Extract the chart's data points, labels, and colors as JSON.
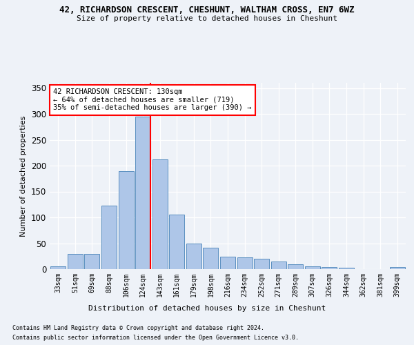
{
  "title_line1": "42, RICHARDSON CRESCENT, CHESHUNT, WALTHAM CROSS, EN7 6WZ",
  "title_line2": "Size of property relative to detached houses in Cheshunt",
  "xlabel": "Distribution of detached houses by size in Cheshunt",
  "ylabel": "Number of detached properties",
  "categories": [
    "33sqm",
    "51sqm",
    "69sqm",
    "88sqm",
    "106sqm",
    "124sqm",
    "143sqm",
    "161sqm",
    "179sqm",
    "198sqm",
    "216sqm",
    "234sqm",
    "252sqm",
    "271sqm",
    "289sqm",
    "307sqm",
    "326sqm",
    "344sqm",
    "362sqm",
    "381sqm",
    "399sqm"
  ],
  "values": [
    5,
    29,
    29,
    123,
    190,
    295,
    212,
    106,
    50,
    41,
    24,
    23,
    20,
    15,
    10,
    5,
    4,
    3,
    0,
    0,
    4
  ],
  "bar_color": "#aec6e8",
  "bar_edge_color": "#5a8fc0",
  "ylim": [
    0,
    360
  ],
  "yticks": [
    0,
    50,
    100,
    150,
    200,
    250,
    300,
    350
  ],
  "red_line_x": 5.0,
  "annotation_text": "42 RICHARDSON CRESCENT: 130sqm\n← 64% of detached houses are smaller (719)\n35% of semi-detached houses are larger (390) →",
  "footnote1": "Contains HM Land Registry data © Crown copyright and database right 2024.",
  "footnote2": "Contains public sector information licensed under the Open Government Licence v3.0.",
  "bg_color": "#eef2f8",
  "plot_bg_color": "#eef2f8",
  "grid_color": "#ffffff"
}
